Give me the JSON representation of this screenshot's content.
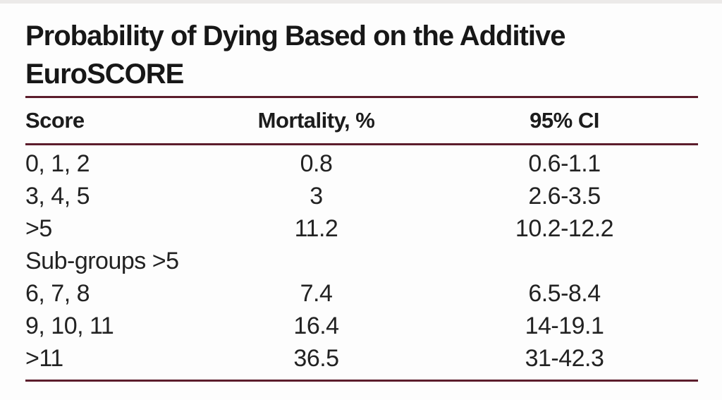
{
  "title": "Probability of Dying Based on the Additive\nEuroSCORE",
  "colors": {
    "rule": "#5c1d2c",
    "text": "#1c1c1c"
  },
  "table": {
    "columns": [
      "Score",
      "Mortality, %",
      "95% CI"
    ],
    "rows": [
      {
        "score": "0, 1, 2",
        "mortality": "0.8",
        "ci": "0.6-1.1"
      },
      {
        "score": "3, 4, 5",
        "mortality": "3",
        "ci": "2.6-3.5"
      },
      {
        "score": ">5",
        "mortality": "11.2",
        "ci": "10.2-12.2"
      },
      {
        "score": "Sub-groups >5",
        "mortality": "",
        "ci": ""
      },
      {
        "score": "6, 7, 8",
        "mortality": "7.4",
        "ci": "6.5-8.4"
      },
      {
        "score": "9, 10, 11",
        "mortality": "16.4",
        "ci": "14-19.1"
      },
      {
        "score": ">11",
        "mortality": "36.5",
        "ci": "31-42.3"
      }
    ]
  }
}
